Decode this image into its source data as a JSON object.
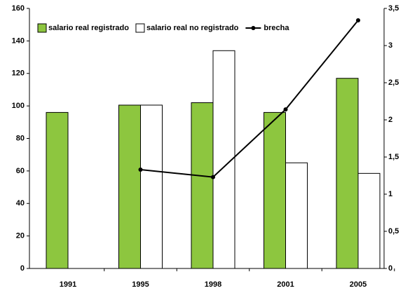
{
  "chart_data": {
    "type": "bar",
    "categories": [
      "1991",
      "1995",
      "1998",
      "2001",
      "2005"
    ],
    "series": [
      {
        "name": "salario real registrado",
        "color": "#8dc63f",
        "values": [
          96,
          100.5,
          102,
          96,
          117
        ]
      },
      {
        "name": "salario real no registrado",
        "color": "#ffffff",
        "values": [
          null,
          100.5,
          134,
          65,
          58.5
        ]
      },
      {
        "name": "brecha",
        "color": "#000000",
        "type": "line",
        "axis": "y2",
        "values": [
          null,
          1.33,
          1.23,
          2.14,
          3.34
        ]
      }
    ],
    "ylim": [
      0,
      160
    ],
    "yticks": [
      0,
      20,
      40,
      60,
      80,
      100,
      120,
      140,
      160
    ],
    "y2lim": [
      0,
      3.5
    ],
    "y2ticks": [
      0,
      {
        "value": 0.5,
        "label": "0,5"
      },
      1,
      {
        "value": 1.5,
        "label": "1,5"
      },
      2,
      {
        "value": 2.5,
        "label": "2,5"
      },
      3,
      {
        "value": 3.5,
        "label": "3,5"
      }
    ],
    "grid": false,
    "legend": "top-left"
  }
}
